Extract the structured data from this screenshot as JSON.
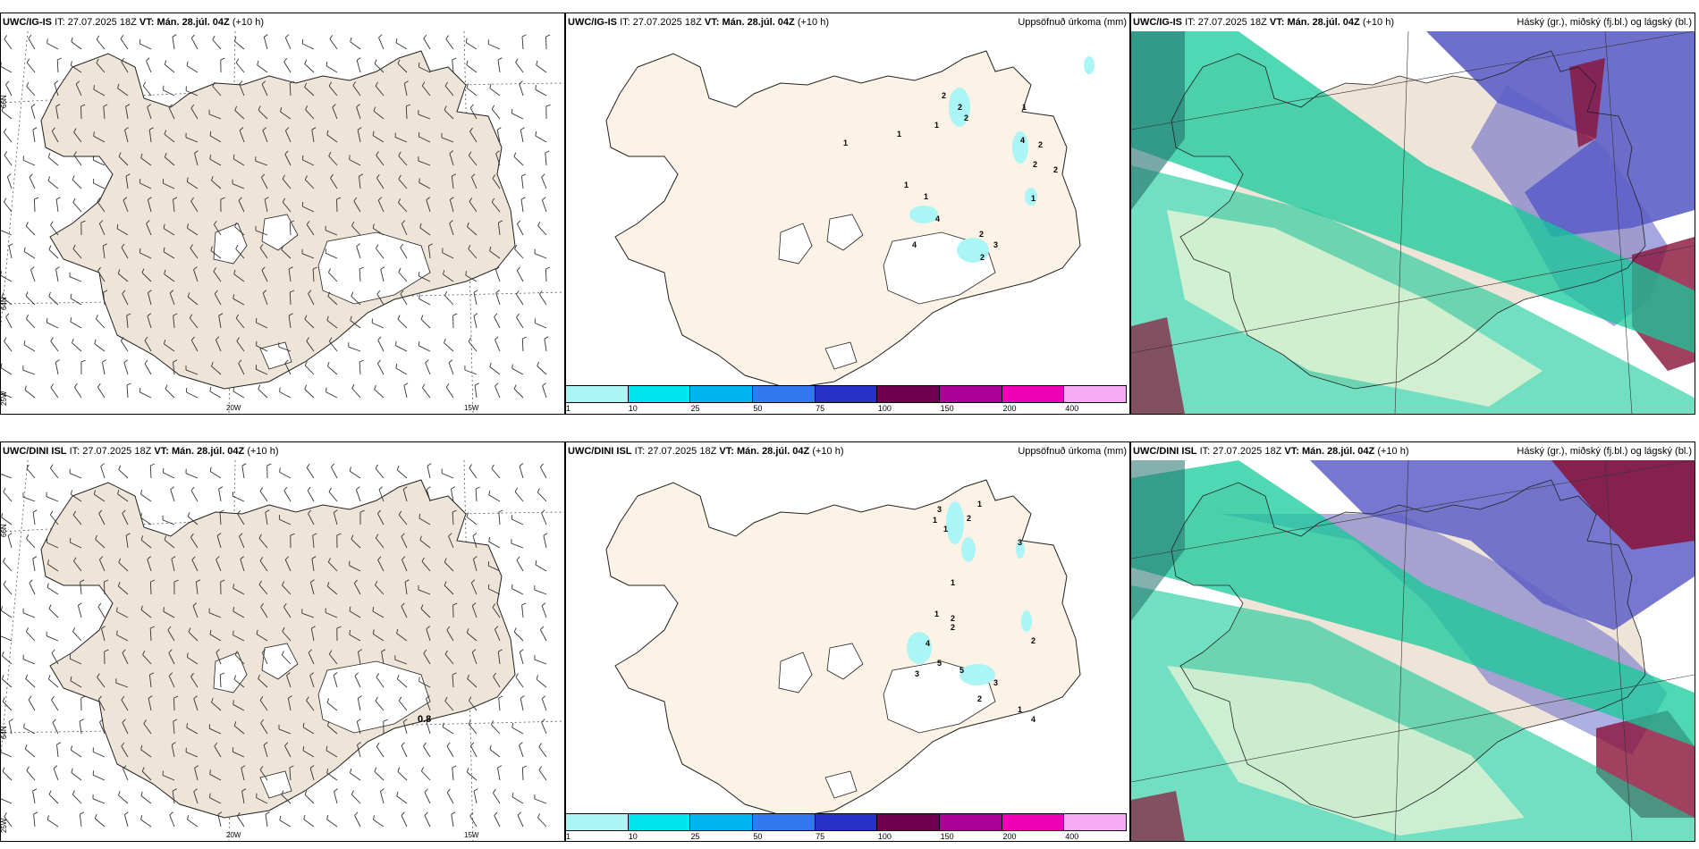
{
  "rows": [
    {
      "model": "UWC/IG-IS",
      "it_label": "IT:",
      "it_value": "27.07.2025 18Z",
      "vt_label": "VT:",
      "vt_value": "Mán. 28.júl. 04Z",
      "lead": "(+10 h)"
    },
    {
      "model": "UWC/DINI ISL",
      "it_label": "IT:",
      "it_value": "27.07.2025 18Z",
      "vt_label": "VT:",
      "vt_value": "Mán. 28.júl. 04Z",
      "lead": "(+10 h)"
    }
  ],
  "precip_title": "Uppsöfnuð úrkoma (mm)",
  "cloud_title": "Háský (gr.), miðský (fj.bl.) og lágský (bl.)",
  "grid_labels": {
    "lat66": "66N",
    "lat64": "64N",
    "lon25": "25W",
    "lon20": "20W",
    "lon15": "15W"
  },
  "wind_value_label": "0.8",
  "legend": {
    "colors": [
      "#aaf5f5",
      "#00e6f0",
      "#00b4f0",
      "#3278f0",
      "#2832c8",
      "#6e0050",
      "#aa0096",
      "#f000b4",
      "#f5aaf5"
    ],
    "ticks": [
      "1",
      "10",
      "25",
      "50",
      "75",
      "100",
      "150",
      "200",
      "400"
    ]
  },
  "precip_labels_top": [
    "2",
    "2",
    "2",
    "1",
    "1",
    "4",
    "2",
    "2",
    "2",
    "1",
    "1",
    "4",
    "1",
    "2",
    "4",
    "3",
    "2",
    "1",
    "1"
  ],
  "precip_labels_bottom": [
    "3",
    "1",
    "2",
    "1",
    "1",
    "3",
    "1",
    "2",
    "1",
    "2",
    "2",
    "4",
    "5",
    "5",
    "3",
    "3",
    "2",
    "1",
    "4"
  ],
  "colors": {
    "land_wind": "#efe4d8",
    "land_precip": "#fdf2e6",
    "cloud_high": "#16c99a",
    "cloud_mid": "#5d5fc8",
    "cloud_low": "#8a1238"
  }
}
